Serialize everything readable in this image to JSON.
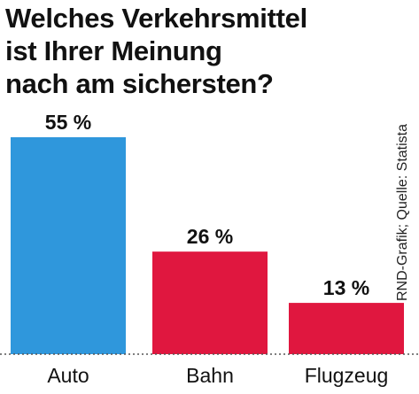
{
  "chart_data": {
    "type": "bar",
    "title_lines": [
      "Welches Verkehrsmittel",
      "ist Ihrer Meinung",
      "nach am sichersten?"
    ],
    "categories": [
      "Auto",
      "Bahn",
      "Flugzeug"
    ],
    "values": [
      55,
      26,
      13
    ],
    "value_labels": [
      "55 %",
      "26 %",
      "13 %"
    ],
    "colors": [
      "#2f97dc",
      "#e0173f",
      "#e0173f"
    ],
    "ylim": [
      0,
      55
    ],
    "grid": false,
    "source": "RND-Grafik; Quelle: Statista"
  }
}
